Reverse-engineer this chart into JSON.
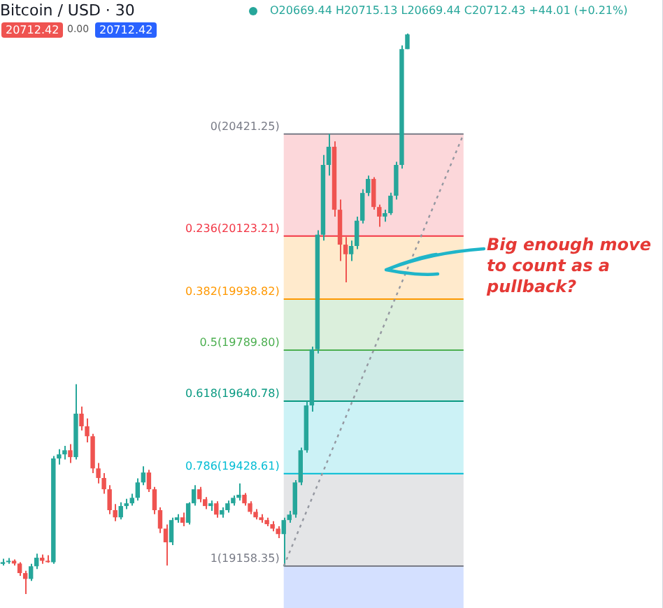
{
  "chart_data": {
    "type": "candlestick",
    "title": "Bitcoin / USD · 30",
    "annotations": [
      "O20669.44 H20715.13 L20669.44 C20712.43 +44.01 (+0.21%)",
      "20712.42",
      "0.00",
      "20712.42",
      "Big enough move to count as a pullback?"
    ],
    "categories": [
      null,
      null,
      null,
      null,
      null,
      null,
      null,
      null,
      null,
      null,
      null,
      null,
      null,
      null,
      null,
      null,
      null,
      null,
      null,
      null,
      null,
      null,
      null,
      null,
      null,
      null,
      null,
      null,
      null,
      null,
      null,
      null,
      null,
      null,
      null,
      null,
      null,
      null,
      null,
      null,
      null,
      null,
      null,
      null,
      null,
      null,
      null,
      null,
      null,
      null,
      null,
      null,
      null,
      null,
      null,
      null,
      null,
      null,
      null,
      null,
      null,
      null,
      null,
      null,
      null,
      null,
      null,
      null,
      null,
      null,
      null,
      null,
      null,
      null,
      null,
      null,
      null,
      null,
      null,
      null,
      null,
      null,
      null,
      null,
      null,
      null,
      null,
      null,
      null,
      null,
      null,
      null,
      null,
      null,
      null,
      null,
      null,
      null,
      null,
      null,
      null,
      null,
      null,
      null,
      null,
      null,
      null,
      null,
      null,
      null,
      null,
      null,
      null,
      null,
      null,
      null,
      null,
      null
    ],
    "ohlc": [
      [
        19165,
        19180,
        19160,
        19170
      ],
      [
        19170,
        19182,
        19165,
        19174
      ],
      [
        19174,
        19178,
        19160,
        19166
      ],
      [
        19166,
        19170,
        19130,
        19138
      ],
      [
        19138,
        19145,
        19077,
        19121
      ],
      [
        19121,
        19165,
        19115,
        19158
      ],
      [
        19158,
        19195,
        19150,
        19183
      ],
      [
        19183,
        19192,
        19165,
        19174
      ],
      [
        19174,
        19190,
        19168,
        19170
      ],
      [
        19170,
        19480,
        19165,
        19473
      ],
      [
        19473,
        19500,
        19455,
        19485
      ],
      [
        19485,
        19510,
        19470,
        19497
      ],
      [
        19497,
        19515,
        19460,
        19477
      ],
      [
        19477,
        19690,
        19470,
        19604
      ],
      [
        19604,
        19625,
        19555,
        19567
      ],
      [
        19567,
        19590,
        19520,
        19538
      ],
      [
        19538,
        19545,
        19430,
        19444
      ],
      [
        19444,
        19460,
        19400,
        19416
      ],
      [
        19416,
        19430,
        19370,
        19383
      ],
      [
        19383,
        19395,
        19310,
        19322
      ],
      [
        19322,
        19340,
        19290,
        19301
      ],
      [
        19301,
        19345,
        19295,
        19334
      ],
      [
        19334,
        19355,
        19325,
        19342
      ],
      [
        19342,
        19370,
        19335,
        19358
      ],
      [
        19358,
        19415,
        19350,
        19403
      ],
      [
        19403,
        19450,
        19395,
        19432
      ],
      [
        19432,
        19440,
        19375,
        19383
      ],
      [
        19383,
        19390,
        19310,
        19322
      ],
      [
        19322,
        19330,
        19255,
        19268
      ],
      [
        19268,
        19280,
        19160,
        19228
      ],
      [
        19228,
        19300,
        19220,
        19293
      ],
      [
        19293,
        19310,
        19285,
        19301
      ],
      [
        19301,
        19315,
        19275,
        19285
      ],
      [
        19285,
        19345,
        19280,
        19342
      ],
      [
        19342,
        19395,
        19335,
        19383
      ],
      [
        19383,
        19390,
        19345,
        19354
      ],
      [
        19354,
        19360,
        19325,
        19334
      ],
      [
        19334,
        19350,
        19320,
        19342
      ],
      [
        19342,
        19348,
        19300,
        19309
      ],
      [
        19309,
        19330,
        19300,
        19322
      ],
      [
        19322,
        19350,
        19315,
        19342
      ],
      [
        19342,
        19365,
        19335,
        19358
      ],
      [
        19358,
        19400,
        19350,
        19367
      ],
      [
        19367,
        19372,
        19335,
        19342
      ],
      [
        19342,
        19348,
        19310,
        19317
      ],
      [
        19317,
        19325,
        19295,
        19301
      ],
      [
        19301,
        19310,
        19285,
        19293
      ],
      [
        19293,
        19300,
        19275,
        19281
      ],
      [
        19281,
        19290,
        19260,
        19268
      ],
      [
        19268,
        19275,
        19240,
        19252
      ],
      [
        19252,
        19300,
        19158.35,
        19293
      ],
      [
        19293,
        19320,
        19285,
        19309
      ],
      [
        19309,
        19410,
        19300,
        19403
      ],
      [
        19403,
        19505,
        19395,
        19497
      ],
      [
        19497,
        19640,
        19490,
        19628
      ],
      [
        19628,
        19800,
        19610,
        19792
      ],
      [
        19792,
        20140,
        19780,
        20127
      ],
      [
        20127,
        20360,
        20110,
        20331
      ],
      [
        20331,
        20421.25,
        20300,
        20384
      ],
      [
        20384,
        20400,
        20180,
        20200
      ],
      [
        20200,
        20230,
        20050,
        20098
      ],
      [
        20098,
        20120,
        19988,
        20070
      ],
      [
        20070,
        20110,
        20050,
        20094
      ],
      [
        20094,
        20180,
        20085,
        20168
      ],
      [
        20168,
        20260,
        20160,
        20249
      ],
      [
        20249,
        20300,
        20240,
        20290
      ],
      [
        20290,
        20295,
        20200,
        20208
      ],
      [
        20208,
        20215,
        20150,
        20180
      ],
      [
        20180,
        20200,
        20165,
        20190
      ],
      [
        20190,
        20250,
        20185,
        20241
      ],
      [
        20241,
        20340,
        20230,
        20331
      ],
      [
        20331,
        20680,
        20320,
        20669.44
      ],
      [
        20669.44,
        20715.13,
        20669.44,
        20712.43
      ],
      null,
      null,
      null,
      null,
      null,
      null,
      null,
      null,
      null,
      null,
      null,
      null,
      null,
      null,
      null,
      null,
      null,
      null,
      null,
      null,
      null,
      null,
      null,
      null,
      null,
      null,
      null,
      null,
      null,
      null,
      null,
      null,
      null,
      null,
      null,
      null,
      null,
      null,
      null,
      null,
      null,
      null,
      null,
      null,
      null
    ],
    "colors": [
      "#26a69a",
      "#26a69a",
      "#ef5350",
      "#ef5350",
      "#ef5350",
      "#26a69a",
      "#26a69a",
      "#ef5350",
      "#ef5350",
      "#26a69a",
      "#26a69a",
      "#26a69a",
      "#ef5350",
      "#26a69a",
      "#ef5350",
      "#ef5350",
      "#ef5350",
      "#ef5350",
      "#ef5350",
      "#ef5350",
      "#ef5350",
      "#26a69a",
      "#26a69a",
      "#26a69a",
      "#26a69a",
      "#26a69a",
      "#ef5350",
      "#ef5350",
      "#ef5350",
      "#ef5350",
      "#26a69a",
      "#26a69a",
      "#ef5350",
      "#26a69a",
      "#26a69a",
      "#ef5350",
      "#ef5350",
      "#26a69a",
      "#ef5350",
      "#26a69a",
      "#26a69a",
      "#26a69a",
      "#26a69a",
      "#ef5350",
      "#ef5350",
      "#ef5350",
      "#ef5350",
      "#ef5350",
      "#ef5350",
      "#ef5350",
      "#26a69a",
      "#26a69a",
      "#26a69a",
      "#26a69a",
      "#26a69a",
      "#26a69a",
      "#26a69a",
      "#26a69a",
      "#26a69a",
      "#ef5350",
      "#ef5350",
      "#ef5350",
      "#26a69a",
      "#26a69a",
      "#26a69a",
      "#26a69a",
      "#ef5350",
      "#ef5350",
      "#26a69a",
      "#26a69a",
      "#26a69a",
      "#26a69a",
      "#26a69a",
      null,
      null,
      null,
      null,
      null,
      null,
      null,
      null,
      null,
      null,
      null,
      null,
      null,
      null,
      null,
      null,
      null,
      null,
      null,
      null,
      null,
      null,
      null,
      null,
      null,
      null,
      null,
      null,
      null,
      null,
      null,
      null,
      null,
      null,
      null,
      null,
      null,
      null,
      null,
      null,
      null,
      null,
      null,
      null,
      null
    ],
    "series": [
      {
        "type": "line",
        "color": "#9598a1",
        "line_style": "dotted",
        "values": [
          null,
          null,
          null,
          null,
          null,
          null,
          null,
          null,
          null,
          null,
          null,
          null,
          null,
          null,
          null,
          null,
          null,
          null,
          null,
          null,
          null,
          null,
          null,
          null,
          null,
          null,
          null,
          null,
          null,
          null,
          null,
          null,
          null,
          null,
          null,
          null,
          null,
          null,
          null,
          null,
          null,
          null,
          null,
          null,
          null,
          null,
          null,
          null,
          null,
          null,
          19158.35,
          null,
          null,
          null,
          null,
          null,
          null,
          null,
          null,
          null,
          null,
          null,
          null,
          null,
          null,
          null,
          null,
          null,
          null,
          null,
          null,
          null,
          null,
          null,
          null,
          null,
          null,
          null,
          null,
          null,
          null,
          null,
          20421.25,
          null,
          null,
          null,
          null,
          null,
          null,
          null,
          null,
          null,
          null,
          null,
          null,
          null,
          null,
          null,
          null,
          null,
          null,
          null,
          null,
          null,
          null,
          null,
          null,
          null,
          null,
          null,
          null,
          null,
          null,
          null,
          null,
          null,
          null,
          null
        ]
      }
    ],
    "ylim": [
      19036,
      20813
    ],
    "tick_labels": false,
    "legend": false,
    "ref_lines": [
      {
        "axis": "y",
        "value": 20421.25,
        "label": "0(20421.25)",
        "color": "#787b86"
      },
      {
        "axis": "y",
        "value": 20123.21,
        "label": "0.236(20123.21)",
        "color": "#f23645"
      },
      {
        "axis": "y",
        "value": 19938.82,
        "label": "0.382(19938.82)",
        "color": "#ff9800"
      },
      {
        "axis": "y",
        "value": 19789.8,
        "label": "0.5(19789.80)",
        "color": "#4caf50"
      },
      {
        "axis": "y",
        "value": 19640.78,
        "label": "0.618(19640.78)",
        "color": "#089981"
      },
      {
        "axis": "y",
        "value": 19428.61,
        "label": "0.786(19428.61)",
        "color": "#00bcd4"
      },
      {
        "axis": "y",
        "value": 19158.35,
        "label": "1(19158.35)",
        "color": "#787b86"
      }
    ],
    "bands": [
      {
        "axis": "y",
        "from": 20123.21,
        "to": 20421.25,
        "color": "#f23645"
      },
      {
        "axis": "y",
        "from": 19938.82,
        "to": 20123.21,
        "color": "#ff9800"
      },
      {
        "axis": "y",
        "from": 19789.8,
        "to": 19938.82,
        "color": "#4caf50"
      },
      {
        "axis": "y",
        "from": 19640.78,
        "to": 19789.8,
        "color": "#089981"
      },
      {
        "axis": "y",
        "from": 19428.61,
        "to": 19640.78,
        "color": "#00bcd4"
      },
      {
        "axis": "y",
        "from": 19158.35,
        "to": 19428.61,
        "color": "#787b86"
      },
      {
        "axis": "y",
        "from": 19036,
        "to": 19158.35,
        "color": "#2962ff"
      }
    ]
  }
}
